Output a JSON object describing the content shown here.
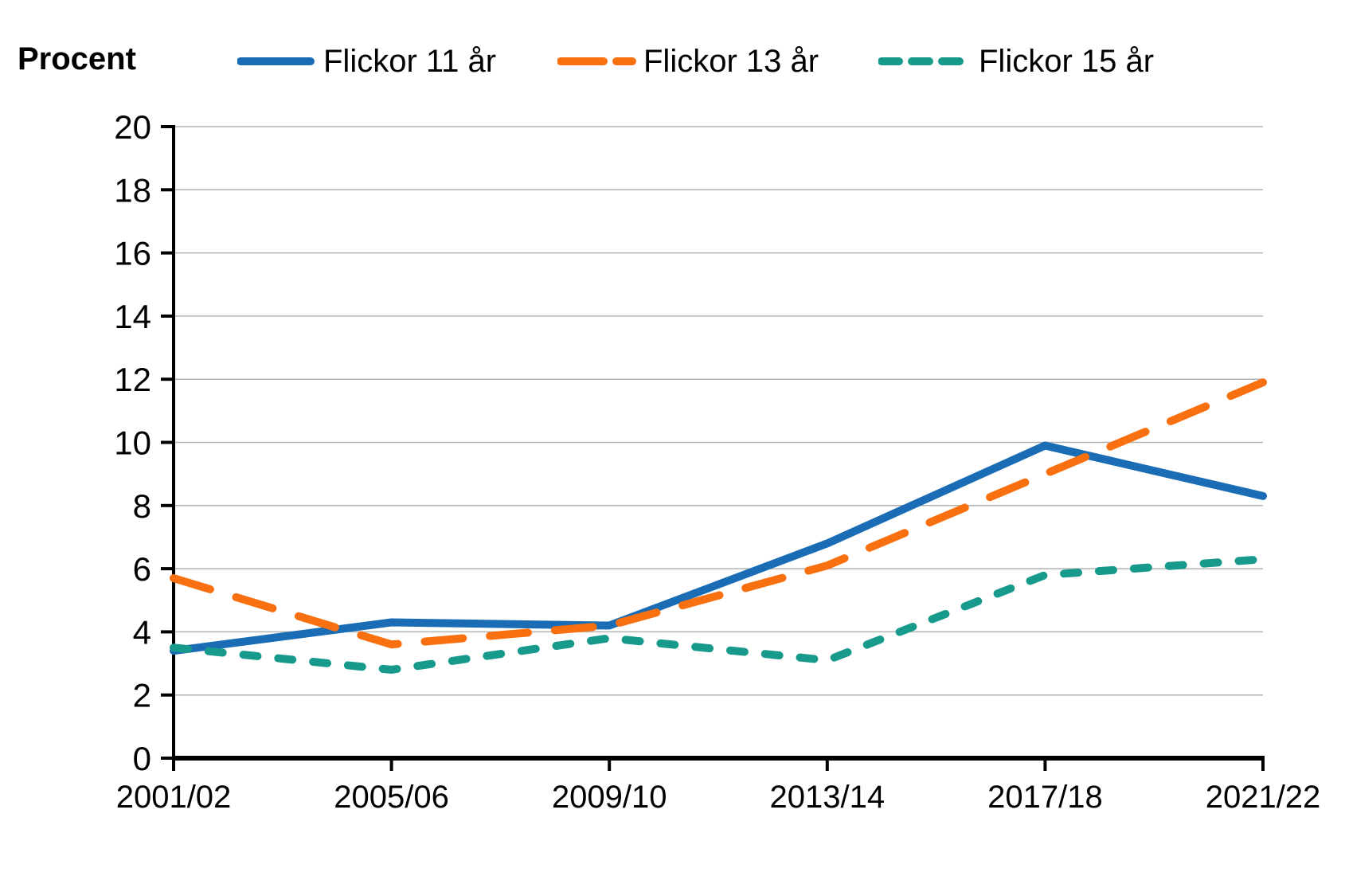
{
  "header": {
    "y_axis_title": "Procent"
  },
  "legend": [
    {
      "label": "Flickor 11 år",
      "color": "#1a6db5",
      "style": "solid"
    },
    {
      "label": "Flickor 13 år",
      "color": "#f8700f",
      "style": "long-dash"
    },
    {
      "label": "Flickor 15 år",
      "color": "#17998c",
      "style": "short-dash"
    }
  ],
  "colors": {
    "grid": "#b2b2b2",
    "axis": "#000000",
    "background": "#ffffff"
  },
  "chart_data": {
    "type": "line",
    "title": "",
    "xlabel": "",
    "ylabel": "Procent",
    "categories": [
      "2001/02",
      "2005/06",
      "2009/10",
      "2013/14",
      "2017/18",
      "2021/22"
    ],
    "series": [
      {
        "name": "Flickor 11 år",
        "color": "#1a6db5",
        "dash": "solid",
        "values": [
          3.4,
          4.3,
          4.2,
          6.8,
          9.9,
          8.3
        ]
      },
      {
        "name": "Flickor 13 år",
        "color": "#f8700f",
        "dash": "long-dash",
        "values": [
          5.7,
          3.6,
          4.2,
          6.1,
          9.0,
          11.9
        ]
      },
      {
        "name": "Flickor 15 år",
        "color": "#17998c",
        "dash": "short-dash",
        "values": [
          3.5,
          2.8,
          3.8,
          3.1,
          5.8,
          6.3
        ]
      }
    ],
    "ylim": [
      0,
      20
    ],
    "ytick_step": 2,
    "grid": true,
    "legend_position": "top"
  }
}
